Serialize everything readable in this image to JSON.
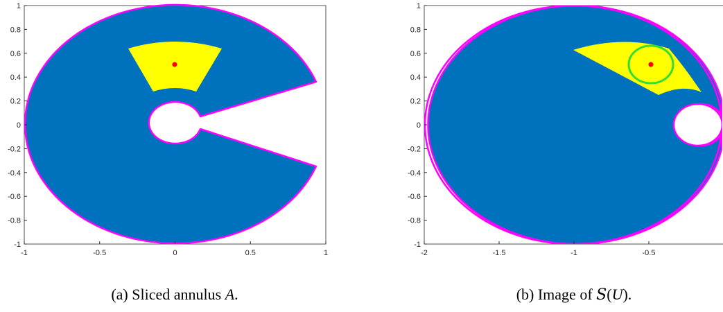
{
  "colors": {
    "region": "#0072BD",
    "boundary": "#FF00FF",
    "highlight": "#FFFF00",
    "center_point": "#FF0000",
    "disc": "#33DD33",
    "axes": "#262626"
  },
  "figure_a": {
    "caption_prefix": "(a) Sliced annulus ",
    "caption_symbol": "A",
    "caption_suffix": ".",
    "x_ticks": [
      "-1",
      "-0.5",
      "0",
      "0.5",
      "1"
    ],
    "y_ticks": [
      "1",
      "0.8",
      "0.6",
      "0.4",
      "0.2",
      "0",
      "-0.2",
      "-0.4",
      "-0.6",
      "-0.8",
      "-1"
    ]
  },
  "figure_b": {
    "caption_prefix": "(b) Image of ",
    "caption_symbol": "S",
    "caption_open": "(",
    "caption_arg": "U",
    "caption_close": ").",
    "x_ticks": [
      "-2",
      "-1.5",
      "-1",
      "-0.5"
    ],
    "y_ticks": [
      "1",
      "0.8",
      "0.6",
      "0.4",
      "0.2",
      "0",
      "-0.2",
      "-0.4",
      "-0.6",
      "-0.8",
      "-1"
    ]
  }
}
